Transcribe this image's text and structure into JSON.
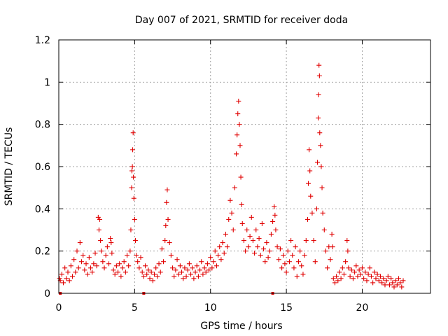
{
  "chart_data": {
    "type": "scatter",
    "title": "Day 007 of 2021, SRMTID for receiver doda",
    "xlabel": "GPS time / hours",
    "ylabel": "SRMTID / TECUs",
    "xlim": [
      0,
      24.5
    ],
    "ylim": [
      0,
      1.2
    ],
    "x_ticks": [
      0,
      5,
      10,
      15,
      20
    ],
    "y_ticks": [
      0,
      0.2,
      0.4,
      0.6,
      0.8,
      1,
      1.2
    ],
    "x_tick_labels": [
      "0",
      "5",
      "10",
      "15",
      "20"
    ],
    "y_tick_labels": [
      "0",
      "0.2",
      "0.4",
      "0.6",
      "0.8",
      "1",
      "1.2"
    ],
    "grid": true,
    "marker": "+",
    "color": "#e00000",
    "series": [
      {
        "name": "SRMTID",
        "points": [
          [
            0.05,
            0.07
          ],
          [
            0.1,
            0.06
          ],
          [
            0.2,
            0.09
          ],
          [
            0.3,
            0.05
          ],
          [
            0.4,
            0.12
          ],
          [
            0.5,
            0.07
          ],
          [
            0.6,
            0.1
          ],
          [
            0.7,
            0.06
          ],
          [
            0.8,
            0.13
          ],
          [
            0.9,
            0.08
          ],
          [
            1.0,
            0.16
          ],
          [
            1.1,
            0.1
          ],
          [
            1.2,
            0.2
          ],
          [
            1.3,
            0.12
          ],
          [
            1.4,
            0.24
          ],
          [
            1.5,
            0.15
          ],
          [
            1.6,
            0.18
          ],
          [
            1.7,
            0.11
          ],
          [
            1.8,
            0.14
          ],
          [
            1.9,
            0.09
          ],
          [
            2.0,
            0.17
          ],
          [
            2.1,
            0.12
          ],
          [
            2.2,
            0.1
          ],
          [
            2.3,
            0.14
          ],
          [
            2.4,
            0.19
          ],
          [
            2.5,
            0.13
          ],
          [
            2.6,
            0.36
          ],
          [
            2.65,
            0.3
          ],
          [
            2.7,
            0.35
          ],
          [
            2.75,
            0.25
          ],
          [
            2.8,
            0.2
          ],
          [
            2.9,
            0.15
          ],
          [
            3.0,
            0.12
          ],
          [
            3.1,
            0.18
          ],
          [
            3.2,
            0.22
          ],
          [
            3.3,
            0.14
          ],
          [
            3.4,
            0.26
          ],
          [
            3.45,
            0.24
          ],
          [
            3.5,
            0.19
          ],
          [
            3.6,
            0.11
          ],
          [
            3.7,
            0.09
          ],
          [
            3.8,
            0.13
          ],
          [
            3.9,
            0.1
          ],
          [
            4.0,
            0.14
          ],
          [
            4.1,
            0.08
          ],
          [
            4.2,
            0.12
          ],
          [
            4.3,
            0.15
          ],
          [
            4.4,
            0.1
          ],
          [
            4.5,
            0.18
          ],
          [
            4.6,
            0.13
          ],
          [
            4.7,
            0.2
          ],
          [
            4.75,
            0.3
          ],
          [
            4.8,
            0.5
          ],
          [
            4.82,
            0.58
          ],
          [
            4.85,
            0.6
          ],
          [
            4.87,
            0.68
          ],
          [
            4.9,
            0.76
          ],
          [
            4.92,
            0.55
          ],
          [
            4.95,
            0.45
          ],
          [
            5.0,
            0.35
          ],
          [
            5.05,
            0.25
          ],
          [
            5.1,
            0.18
          ],
          [
            5.2,
            0.15
          ],
          [
            5.3,
            0.12
          ],
          [
            5.4,
            0.17
          ],
          [
            5.5,
            0.1
          ],
          [
            5.6,
            0.08
          ],
          [
            5.7,
            0.13
          ],
          [
            5.8,
            0.09
          ],
          [
            5.9,
            0.11
          ],
          [
            6.0,
            0.07
          ],
          [
            6.1,
            0.1
          ],
          [
            6.2,
            0.06
          ],
          [
            6.3,
            0.09
          ],
          [
            6.4,
            0.12
          ],
          [
            6.5,
            0.08
          ],
          [
            6.6,
            0.14
          ],
          [
            6.7,
            0.1
          ],
          [
            6.8,
            0.21
          ],
          [
            6.9,
            0.15
          ],
          [
            7.0,
            0.25
          ],
          [
            7.05,
            0.32
          ],
          [
            7.1,
            0.43
          ],
          [
            7.15,
            0.49
          ],
          [
            7.2,
            0.35
          ],
          [
            7.3,
            0.24
          ],
          [
            7.4,
            0.18
          ],
          [
            7.5,
            0.12
          ],
          [
            7.6,
            0.08
          ],
          [
            7.7,
            0.11
          ],
          [
            7.8,
            0.16
          ],
          [
            7.9,
            0.09
          ],
          [
            8.0,
            0.13
          ],
          [
            8.1,
            0.1
          ],
          [
            8.2,
            0.07
          ],
          [
            8.3,
            0.12
          ],
          [
            8.4,
            0.08
          ],
          [
            8.5,
            0.11
          ],
          [
            8.6,
            0.14
          ],
          [
            8.7,
            0.09
          ],
          [
            8.8,
            0.12
          ],
          [
            8.9,
            0.07
          ],
          [
            9.0,
            0.1
          ],
          [
            9.1,
            0.13
          ],
          [
            9.2,
            0.08
          ],
          [
            9.3,
            0.11
          ],
          [
            9.4,
            0.15
          ],
          [
            9.5,
            0.09
          ],
          [
            9.6,
            0.12
          ],
          [
            9.7,
            0.1
          ],
          [
            9.8,
            0.14
          ],
          [
            9.9,
            0.11
          ],
          [
            10.0,
            0.17
          ],
          [
            10.1,
            0.12
          ],
          [
            10.2,
            0.15
          ],
          [
            10.3,
            0.2
          ],
          [
            10.4,
            0.13
          ],
          [
            10.5,
            0.18
          ],
          [
            10.6,
            0.22
          ],
          [
            10.7,
            0.16
          ],
          [
            10.8,
            0.24
          ],
          [
            10.9,
            0.19
          ],
          [
            11.0,
            0.28
          ],
          [
            11.1,
            0.22
          ],
          [
            11.2,
            0.35
          ],
          [
            11.3,
            0.44
          ],
          [
            11.4,
            0.38
          ],
          [
            11.5,
            0.3
          ],
          [
            11.6,
            0.5
          ],
          [
            11.7,
            0.66
          ],
          [
            11.75,
            0.75
          ],
          [
            11.8,
            0.85
          ],
          [
            11.85,
            0.91
          ],
          [
            11.9,
            0.8
          ],
          [
            11.95,
            0.7
          ],
          [
            12.0,
            0.55
          ],
          [
            12.05,
            0.42
          ],
          [
            12.1,
            0.33
          ],
          [
            12.2,
            0.25
          ],
          [
            12.3,
            0.2
          ],
          [
            12.4,
            0.3
          ],
          [
            12.5,
            0.22
          ],
          [
            12.6,
            0.27
          ],
          [
            12.7,
            0.36
          ],
          [
            12.8,
            0.25
          ],
          [
            12.9,
            0.19
          ],
          [
            13.0,
            0.3
          ],
          [
            13.1,
            0.22
          ],
          [
            13.2,
            0.26
          ],
          [
            13.3,
            0.18
          ],
          [
            13.4,
            0.33
          ],
          [
            13.5,
            0.21
          ],
          [
            13.6,
            0.15
          ],
          [
            13.7,
            0.24
          ],
          [
            13.8,
            0.17
          ],
          [
            13.9,
            0.2
          ],
          [
            14.0,
            0.28
          ],
          [
            14.1,
            0.34
          ],
          [
            14.2,
            0.41
          ],
          [
            14.25,
            0.37
          ],
          [
            14.3,
            0.3
          ],
          [
            14.4,
            0.22
          ],
          [
            14.5,
            0.16
          ],
          [
            14.6,
            0.21
          ],
          [
            14.7,
            0.12
          ],
          [
            14.8,
            0.18
          ],
          [
            14.9,
            0.14
          ],
          [
            15.0,
            0.1
          ],
          [
            15.1,
            0.2
          ],
          [
            15.2,
            0.15
          ],
          [
            15.3,
            0.25
          ],
          [
            15.4,
            0.18
          ],
          [
            15.5,
            0.12
          ],
          [
            15.6,
            0.22
          ],
          [
            15.7,
            0.08
          ],
          [
            15.8,
            0.15
          ],
          [
            15.9,
            0.2
          ],
          [
            16.0,
            0.13
          ],
          [
            16.1,
            0.09
          ],
          [
            16.2,
            0.18
          ],
          [
            16.3,
            0.25
          ],
          [
            16.4,
            0.35
          ],
          [
            16.45,
            0.52
          ],
          [
            16.5,
            0.68
          ],
          [
            16.55,
            0.58
          ],
          [
            16.6,
            0.46
          ],
          [
            16.7,
            0.38
          ],
          [
            16.8,
            0.25
          ],
          [
            16.9,
            0.15
          ],
          [
            17.0,
            0.4
          ],
          [
            17.05,
            0.62
          ],
          [
            17.1,
            0.83
          ],
          [
            17.12,
            0.94
          ],
          [
            17.15,
            1.08
          ],
          [
            17.18,
            1.03
          ],
          [
            17.2,
            0.76
          ],
          [
            17.25,
            0.7
          ],
          [
            17.3,
            0.6
          ],
          [
            17.35,
            0.5
          ],
          [
            17.4,
            0.38
          ],
          [
            17.5,
            0.3
          ],
          [
            17.6,
            0.2
          ],
          [
            17.7,
            0.12
          ],
          [
            17.8,
            0.22
          ],
          [
            17.9,
            0.16
          ],
          [
            18.0,
            0.28
          ],
          [
            18.05,
            0.22
          ],
          [
            18.1,
            0.07
          ],
          [
            18.2,
            0.05
          ],
          [
            18.3,
            0.08
          ],
          [
            18.4,
            0.06
          ],
          [
            18.5,
            0.1
          ],
          [
            18.6,
            0.07
          ],
          [
            18.7,
            0.12
          ],
          [
            18.8,
            0.09
          ],
          [
            18.9,
            0.15
          ],
          [
            19.0,
            0.25
          ],
          [
            19.05,
            0.2
          ],
          [
            19.1,
            0.12
          ],
          [
            19.2,
            0.08
          ],
          [
            19.3,
            0.11
          ],
          [
            19.4,
            0.07
          ],
          [
            19.5,
            0.1
          ],
          [
            19.6,
            0.13
          ],
          [
            19.7,
            0.08
          ],
          [
            19.8,
            0.11
          ],
          [
            19.9,
            0.09
          ],
          [
            20.0,
            0.12
          ],
          [
            20.1,
            0.07
          ],
          [
            20.2,
            0.1
          ],
          [
            20.3,
            0.06
          ],
          [
            20.4,
            0.09
          ],
          [
            20.5,
            0.12
          ],
          [
            20.6,
            0.08
          ],
          [
            20.7,
            0.05
          ],
          [
            20.8,
            0.1
          ],
          [
            20.9,
            0.07
          ],
          [
            21.0,
            0.09
          ],
          [
            21.1,
            0.06
          ],
          [
            21.2,
            0.08
          ],
          [
            21.3,
            0.05
          ],
          [
            21.4,
            0.07
          ],
          [
            21.5,
            0.04
          ],
          [
            21.6,
            0.06
          ],
          [
            21.7,
            0.08
          ],
          [
            21.8,
            0.04
          ],
          [
            21.9,
            0.07
          ],
          [
            22.0,
            0.05
          ],
          [
            22.1,
            0.03
          ],
          [
            22.2,
            0.06
          ],
          [
            22.3,
            0.04
          ],
          [
            22.4,
            0.07
          ],
          [
            22.5,
            0.05
          ],
          [
            22.6,
            0.03
          ],
          [
            22.7,
            0.06
          ]
        ]
      }
    ],
    "axis_markers_x": [
      0.1,
      5.6,
      14.1
    ]
  }
}
